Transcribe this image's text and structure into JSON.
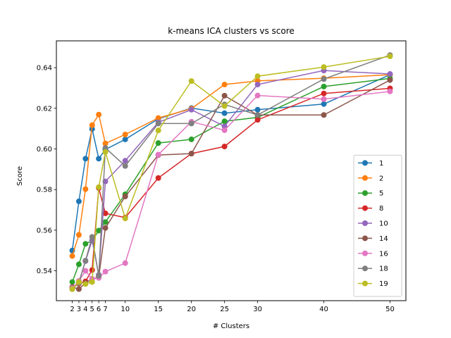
{
  "chart_data": {
    "type": "line",
    "title": "k-means ICA clusters vs score",
    "xlabel": "# Clusters",
    "ylabel": "Score",
    "x": [
      2,
      3,
      4,
      5,
      6,
      7,
      10,
      15,
      20,
      25,
      30,
      40,
      50
    ],
    "xticks": [
      2,
      3,
      4,
      5,
      6,
      7,
      10,
      15,
      20,
      25,
      30,
      40,
      50
    ],
    "yticks": [
      0.54,
      0.56,
      0.58,
      0.6,
      0.62,
      0.64
    ],
    "ytick_labels": [
      "0.54",
      "0.56",
      "0.58",
      "0.60",
      "0.62",
      "0.64"
    ],
    "xlim": [
      -0.4,
      52.4
    ],
    "ylim": [
      0.5253,
      0.6532
    ],
    "grid": false,
    "legend_position": "lower-right",
    "series": [
      {
        "name": "1",
        "color": "#1f77b4",
        "values": [
          0.55,
          0.5742,
          0.5952,
          0.6098,
          0.5952,
          0.5997,
          0.6047,
          0.6148,
          0.6201,
          0.6176,
          0.6193,
          0.6221,
          0.6365
        ]
      },
      {
        "name": "2",
        "color": "#ff7f0e",
        "values": [
          0.5473,
          0.5577,
          0.5802,
          0.6117,
          0.6169,
          0.6027,
          0.6071,
          0.6152,
          0.6198,
          0.6317,
          0.6335,
          0.6348,
          0.6365
        ]
      },
      {
        "name": "5",
        "color": "#2ca02c",
        "values": [
          0.5345,
          0.5432,
          0.5533,
          0.5548,
          0.5598,
          0.564,
          0.5777,
          0.6029,
          0.6047,
          0.6136,
          0.6155,
          0.6307,
          0.6347
        ]
      },
      {
        "name": "8",
        "color": "#d62728",
        "values": [
          0.532,
          0.5337,
          0.5348,
          0.5404,
          0.5808,
          0.5683,
          0.5662,
          0.5857,
          0.5977,
          0.6012,
          0.6143,
          0.6273,
          0.6298
        ]
      },
      {
        "name": "10",
        "color": "#9467bd",
        "values": [
          0.531,
          0.5345,
          0.5448,
          0.555,
          0.538,
          0.584,
          0.5942,
          0.6131,
          0.6193,
          0.6111,
          0.6317,
          0.6386,
          0.6369
        ]
      },
      {
        "name": "14",
        "color": "#8c564b",
        "values": [
          0.532,
          0.531,
          0.534,
          0.536,
          0.5368,
          0.5611,
          0.5766,
          0.597,
          0.5977,
          0.6262,
          0.6167,
          0.6167,
          0.6339
        ]
      },
      {
        "name": "16",
        "color": "#e377c2",
        "values": [
          0.5315,
          0.535,
          0.54,
          0.536,
          0.5365,
          0.5396,
          0.5438,
          0.5972,
          0.6134,
          0.6092,
          0.6263,
          0.6245,
          0.6283
        ]
      },
      {
        "name": "18",
        "color": "#7f7f7f",
        "values": [
          0.531,
          0.534,
          0.545,
          0.5567,
          0.5375,
          0.6005,
          0.5916,
          0.6125,
          0.6125,
          0.6219,
          0.6167,
          0.6344,
          0.6462
        ]
      },
      {
        "name": "19",
        "color": "#bcbd22",
        "values": [
          0.531,
          0.5345,
          0.5335,
          0.5345,
          0.5812,
          0.5985,
          0.5658,
          0.6091,
          0.6334,
          0.6211,
          0.6358,
          0.6403,
          0.6456
        ]
      }
    ]
  }
}
